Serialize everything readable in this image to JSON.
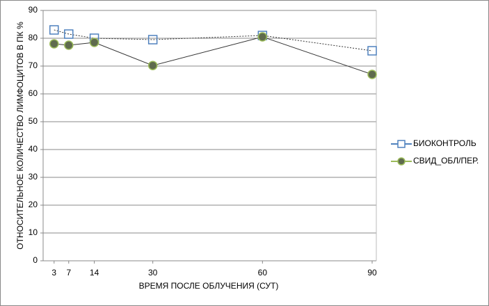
{
  "chart_data": {
    "type": "line",
    "x_label": "ВРЕМЯ ПОСЛЕ ОБЛУЧЕНИЯ (СУТ)",
    "y_label": "ОТНОСИТЕЛЬНОЕ КОЛИЧЕСТВО ЛИМФОЦИТОВ В ПК %",
    "x": [
      3,
      7,
      14,
      30,
      60,
      90
    ],
    "series": [
      {
        "name": "БИОКОНТРОЛЬ",
        "color": "#4f81bd",
        "marker": "square",
        "dashed": true,
        "values": [
          83,
          81.5,
          80,
          79.5,
          81,
          75.5
        ]
      },
      {
        "name": "СВИД_ОБЛ/ПЕР.",
        "color": "#9bbb59",
        "marker": "circle",
        "dashed": false,
        "values": [
          78,
          77.5,
          78.5,
          70.2,
          80.5,
          67
        ]
      }
    ],
    "xlim": [
      0,
      90
    ],
    "xticks": [
      3,
      7,
      14,
      30,
      60,
      90
    ],
    "ylim": [
      0,
      90
    ],
    "yticks": [
      0,
      10,
      20,
      30,
      40,
      50,
      60,
      70,
      80,
      90
    ],
    "grid": true,
    "legend": "right"
  }
}
